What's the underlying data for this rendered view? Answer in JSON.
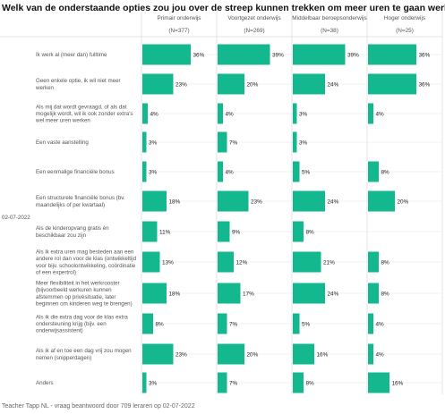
{
  "title": "Welk van de onderstaande opties zou jou over de streep kunnen trekken om meer uren te gaan werken?",
  "date_label": "02-07-2022",
  "footer": "Teacher Tapp NL - vraag beantwoord door 709 leraren op 02-07-2022",
  "colors": {
    "bar": "#14b88f",
    "grid": "#e4e4e4",
    "sep": "#dddddd"
  },
  "chart_data": {
    "type": "bar",
    "orientation": "horizontal",
    "categories": [
      "Ik werk al (meer dan) fulltime",
      "Geen enkele optie, ik wil niet meer werken",
      "Als mij dat wordt gevraagd, of als dat mogelijk wordt, wil ik ook zonder extra's wel meer uren werken",
      "Een vaste aanstelling",
      "Een eenmalige financiële bonus",
      "Een structurele financiële bonus (bv. maandelijks of per kwartaal)",
      "Als de kinderopvang gratis én beschikbaar zou zijn",
      "Als ik extra uren mag besteden aan een andere rol dan voor de klas (ontwikkeltijd voor bijv. schoolontwikkeling, coördinatie of een expertrol)",
      "Meer flexibiliteit in het werkrooster (bijvoorbeeld werkuren kunnen afstemmen op privésituatie, later beginnen om kinderen weg te brengen)",
      "Als ik die extra dag voor de klas extra ondersteuning krijg (bijv. een onderwijsassistent)",
      "Als ik af en toe een dag vrij zou mogen nemen (snipperdagen)",
      "Anders"
    ],
    "category_lines": [
      [
        "Ik werk al (meer dan) fulltime"
      ],
      [
        "Geen enkele optie, ik wil niet meer",
        "werken"
      ],
      [
        "Als mij dat wordt gevraagd, of als dat",
        "mogelijk wordt, wil ik ook zonder extra's",
        "wel meer uren werken"
      ],
      [
        "Een vaste aanstelling"
      ],
      [
        "Een eenmalige financiële bonus"
      ],
      [
        "Een structurele financiële bonus (bv.",
        "maandelijks of per kwartaal)"
      ],
      [
        "Als de kinderopvang gratis én",
        "beschikbaar zou zijn"
      ],
      [
        "Als ik extra uren mag besteden aan een",
        "andere rol dan voor de klas (ontwikkeltijd",
        "voor bijv. schoolontwikkeling, coördinatie",
        "of een expertrol)"
      ],
      [
        "Meer flexibiliteit in het werkrooster",
        "(bijvoorbeeld werkuren kunnen",
        "afstemmen op privésituatie, later",
        "beginnen om kinderen weg te brengen)"
      ],
      [
        "Als ik die extra dag voor de klas extra",
        "ondersteuning krijg (bijv. een",
        "onderwijsassistent)"
      ],
      [
        "Als ik af en toe een dag vrij zou mogen",
        "nemen (snipperdagen)"
      ],
      [
        "Anders"
      ]
    ],
    "value_unit": "%",
    "xlim": [
      0,
      40
    ],
    "series": [
      {
        "name": "Primair onderwijs",
        "n_label": "(N=377)",
        "values": [
          36,
          23,
          4,
          3,
          3,
          18,
          11,
          13,
          18,
          8,
          23,
          3
        ]
      },
      {
        "name": "Voortgezet onderwijs",
        "n_label": "(N=269)",
        "values": [
          39,
          20,
          4,
          7,
          4,
          23,
          9,
          12,
          17,
          7,
          20,
          7
        ]
      },
      {
        "name": "Middelbaar beroepsonderwijs",
        "n_label": "(N=38)",
        "values": [
          39,
          24,
          3,
          3,
          5,
          24,
          8,
          21,
          24,
          5,
          16,
          8
        ]
      },
      {
        "name": "Hoger onderwijs",
        "n_label": "(N=25)",
        "values": [
          36,
          36,
          4,
          0,
          8,
          20,
          0,
          8,
          8,
          4,
          4,
          16
        ]
      }
    ]
  }
}
